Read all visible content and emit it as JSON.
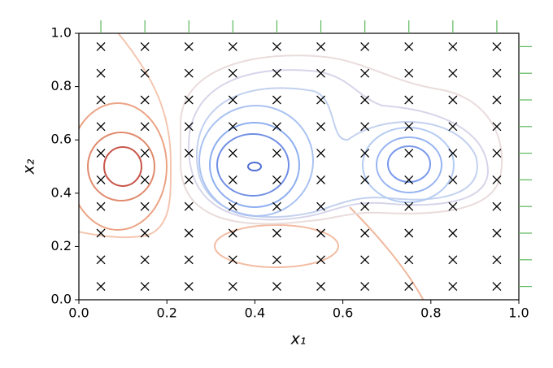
{
  "chart_data": {
    "type": "scatter",
    "xlabel": "x₁",
    "ylabel": "x₂",
    "x": [
      0.05,
      0.15,
      0.25,
      0.35,
      0.45,
      0.55,
      0.65,
      0.75,
      0.85,
      0.95,
      0.05,
      0.15,
      0.25,
      0.35,
      0.45,
      0.55,
      0.65,
      0.75,
      0.85,
      0.95,
      0.05,
      0.15,
      0.25,
      0.35,
      0.45,
      0.55,
      0.65,
      0.75,
      0.85,
      0.95,
      0.05,
      0.15,
      0.25,
      0.35,
      0.45,
      0.55,
      0.65,
      0.75,
      0.85,
      0.95,
      0.05,
      0.15,
      0.25,
      0.35,
      0.45,
      0.55,
      0.65,
      0.75,
      0.85,
      0.95,
      0.05,
      0.15,
      0.25,
      0.35,
      0.45,
      0.55,
      0.65,
      0.75,
      0.85,
      0.95,
      0.05,
      0.15,
      0.25,
      0.35,
      0.45,
      0.55,
      0.65,
      0.75,
      0.85,
      0.95,
      0.05,
      0.15,
      0.25,
      0.35,
      0.45,
      0.55,
      0.65,
      0.75,
      0.85,
      0.95,
      0.05,
      0.15,
      0.25,
      0.35,
      0.45,
      0.55,
      0.65,
      0.75,
      0.85,
      0.95,
      0.05,
      0.15,
      0.25,
      0.35,
      0.45,
      0.55,
      0.65,
      0.75,
      0.85,
      0.95
    ],
    "y": [
      0.05,
      0.05,
      0.05,
      0.05,
      0.05,
      0.05,
      0.05,
      0.05,
      0.05,
      0.05,
      0.15,
      0.15,
      0.15,
      0.15,
      0.15,
      0.15,
      0.15,
      0.15,
      0.15,
      0.15,
      0.25,
      0.25,
      0.25,
      0.25,
      0.25,
      0.25,
      0.25,
      0.25,
      0.25,
      0.25,
      0.35,
      0.35,
      0.35,
      0.35,
      0.35,
      0.35,
      0.35,
      0.35,
      0.35,
      0.35,
      0.45,
      0.45,
      0.45,
      0.45,
      0.45,
      0.45,
      0.45,
      0.45,
      0.45,
      0.45,
      0.55,
      0.55,
      0.55,
      0.55,
      0.55,
      0.55,
      0.55,
      0.55,
      0.55,
      0.55,
      0.65,
      0.65,
      0.65,
      0.65,
      0.65,
      0.65,
      0.65,
      0.65,
      0.65,
      0.65,
      0.75,
      0.75,
      0.75,
      0.75,
      0.75,
      0.75,
      0.75,
      0.75,
      0.75,
      0.75,
      0.85,
      0.85,
      0.85,
      0.85,
      0.85,
      0.85,
      0.85,
      0.85,
      0.85,
      0.85,
      0.95,
      0.95,
      0.95,
      0.95,
      0.95,
      0.95,
      0.95,
      0.95,
      0.95,
      0.95
    ],
    "color": "#000000",
    "rug_color": "#5cb85c",
    "xlim": [
      0,
      1
    ],
    "ylim": [
      0,
      1
    ],
    "xticks": [
      {
        "value": 0,
        "label": "0.0"
      },
      {
        "value": 0.2,
        "label": "0.2"
      },
      {
        "value": 0.4,
        "label": "0.4"
      },
      {
        "value": 0.6,
        "label": "0.6"
      },
      {
        "value": 0.8,
        "label": "0.8"
      },
      {
        "value": 1,
        "label": "1.0"
      }
    ],
    "yticks": [
      {
        "value": 0,
        "label": "0.0"
      },
      {
        "value": 0.2,
        "label": "0.2"
      },
      {
        "value": 0.4,
        "label": "0.4"
      },
      {
        "value": 0.6,
        "label": "0.6"
      },
      {
        "value": 0.8,
        "label": "0.8"
      },
      {
        "value": 1,
        "label": "1.0"
      }
    ]
  }
}
